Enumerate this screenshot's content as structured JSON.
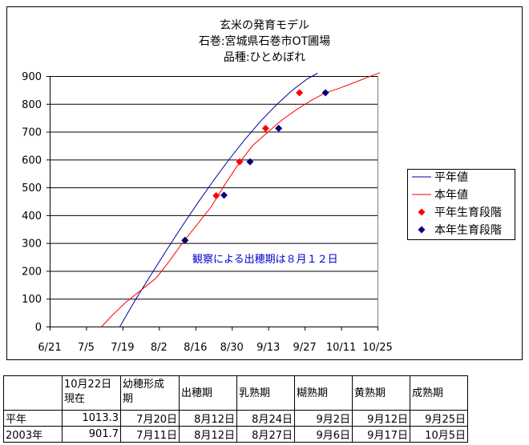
{
  "chart_data": {
    "type": "line",
    "title_lines": [
      "玄米の発育モデル",
      "石巻:宮城県石巻市OT圃場",
      "品種:ひとめぼれ"
    ],
    "x_tick_labels": [
      "6/21",
      "7/5",
      "7/19",
      "8/2",
      "8/16",
      "8/30",
      "9/13",
      "9/27",
      "10/11",
      "10/25"
    ],
    "y_tick_labels": [
      "0",
      "100",
      "200",
      "300",
      "400",
      "500",
      "600",
      "700",
      "800",
      "900"
    ],
    "xlim": [
      "6/21",
      "10/25"
    ],
    "ylim": [
      0,
      900
    ],
    "grid": "horizontal",
    "legend_position": "right",
    "annotation": "観察による出穂期は８月１２日",
    "series": [
      {
        "name": "平年値",
        "kind": "line",
        "color": "#0000a0",
        "points": [
          [
            "7/18",
            0
          ],
          [
            "7/24",
            97
          ],
          [
            "7/30",
            187
          ],
          [
            "8/5",
            276
          ],
          [
            "8/11",
            362
          ],
          [
            "8/17",
            445
          ],
          [
            "8/23",
            525
          ],
          [
            "8/29",
            601
          ],
          [
            "9/4",
            672
          ],
          [
            "9/10",
            737
          ],
          [
            "9/16",
            795
          ],
          [
            "9/22",
            847
          ],
          [
            "9/28",
            890
          ],
          [
            "10/2",
            910
          ]
        ]
      },
      {
        "name": "本年値",
        "kind": "line",
        "color": "#ff0000",
        "points": [
          [
            "7/11",
            0
          ],
          [
            "7/15",
            40
          ],
          [
            "7/20",
            85
          ],
          [
            "7/26",
            130
          ],
          [
            "8/1",
            175
          ],
          [
            "8/6",
            235
          ],
          [
            "8/11",
            300
          ],
          [
            "8/17",
            370
          ],
          [
            "8/22",
            430
          ],
          [
            "8/28",
            520
          ],
          [
            "9/2",
            590
          ],
          [
            "9/7",
            650
          ],
          [
            "9/13",
            700
          ],
          [
            "9/18",
            740
          ],
          [
            "9/24",
            780
          ],
          [
            "9/30",
            815
          ],
          [
            "10/5",
            840
          ],
          [
            "10/10",
            855
          ],
          [
            "10/17",
            880
          ],
          [
            "10/23",
            902
          ],
          [
            "10/26",
            912
          ]
        ]
      },
      {
        "name": "平年生育段階",
        "kind": "markers",
        "color": "#ff0000",
        "points": [
          [
            "8/12",
            310
          ],
          [
            "8/24",
            470
          ],
          [
            "9/2",
            592
          ],
          [
            "9/12",
            712
          ],
          [
            "9/25",
            840
          ]
        ]
      },
      {
        "name": "本年生育段階",
        "kind": "markers",
        "color": "#000080",
        "points": [
          [
            "8/12",
            310
          ],
          [
            "8/27",
            472
          ],
          [
            "9/6",
            592
          ],
          [
            "9/17",
            712
          ],
          [
            "10/5",
            840
          ]
        ]
      }
    ]
  },
  "table": {
    "headers": [
      "",
      "10月22日\n現在",
      "幼穂形成\n期",
      "出穂期",
      "乳熟期",
      "糊熟期",
      "黄熟期",
      "成熟期"
    ],
    "rows": [
      [
        "平年",
        "1013.3",
        "7月20日",
        "8月12日",
        "8月24日",
        "9月2日",
        "9月12日",
        "9月25日"
      ],
      [
        "2003年",
        "901.7",
        "7月11日",
        "8月12日",
        "8月27日",
        "9月6日",
        "9月17日",
        "10月5日"
      ]
    ]
  }
}
